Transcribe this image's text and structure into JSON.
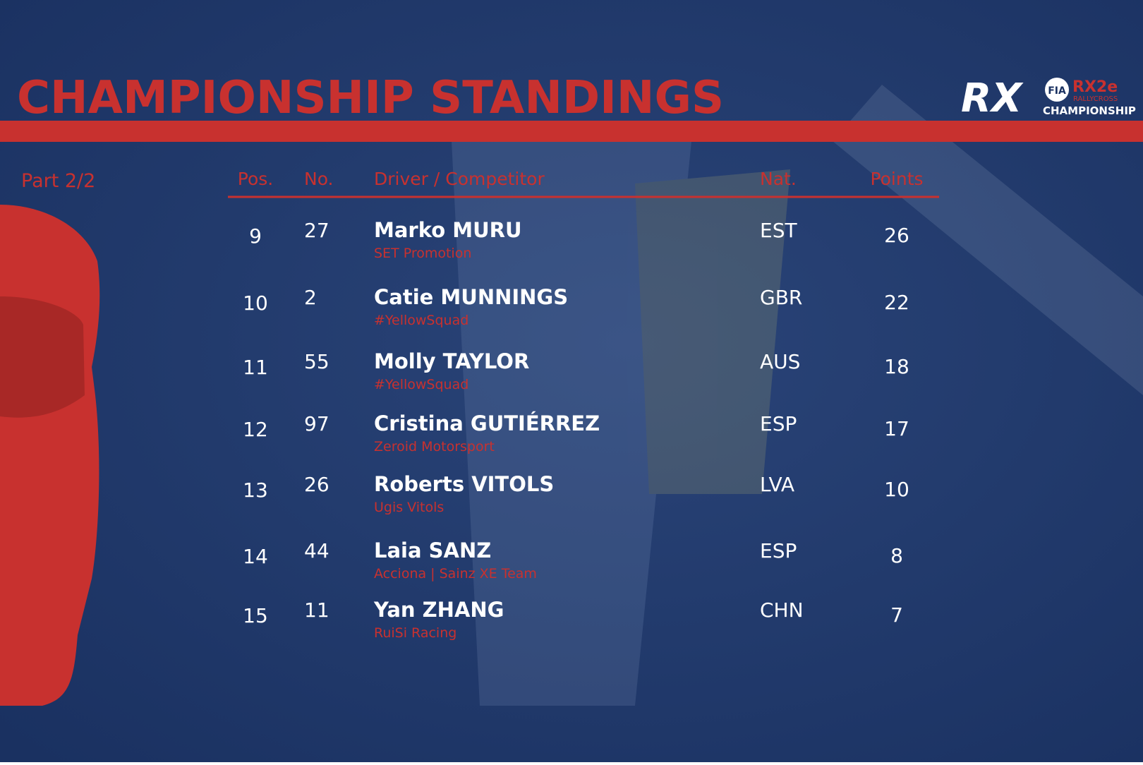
{
  "header": {
    "title": "CHAMPIONSHIP STANDINGS",
    "logo": {
      "rx": "RX",
      "fia": "FIA",
      "series": "RX2e",
      "sub": "RALLYCROSS",
      "championship": "CHAMPIONSHIP"
    }
  },
  "part": "Part 2/2",
  "table": {
    "columns": [
      "Pos.",
      "No.",
      "Driver / Competitor",
      "Nat.",
      "Points"
    ],
    "rows": [
      {
        "pos": "9",
        "no": "27",
        "driver": "Marko MURU",
        "team": "SET Promotion",
        "nat": "EST",
        "points": "26"
      },
      {
        "pos": "10",
        "no": "2",
        "driver": "Catie MUNNINGS",
        "team": "#YellowSquad",
        "nat": "GBR",
        "points": "22"
      },
      {
        "pos": "11",
        "no": "55",
        "driver": "Molly TAYLOR",
        "team": "#YellowSquad",
        "nat": "AUS",
        "points": "18"
      },
      {
        "pos": "12",
        "no": "97",
        "driver": "Cristina GUTIÉRREZ",
        "team": "Zeroid Motorsport",
        "nat": "ESP",
        "points": "17"
      },
      {
        "pos": "13",
        "no": "26",
        "driver": "Roberts VITOLS",
        "team": "Ugis Vitols",
        "nat": "LVA",
        "points": "10"
      },
      {
        "pos": "14",
        "no": "44",
        "driver": "Laia SANZ",
        "team": "Acciona | Sainz XE Team",
        "nat": "ESP",
        "points": "8"
      },
      {
        "pos": "15",
        "no": "11",
        "driver": "Yan ZHANG",
        "team": "RuiSi Racing",
        "nat": "CHN",
        "points": "7"
      }
    ]
  }
}
